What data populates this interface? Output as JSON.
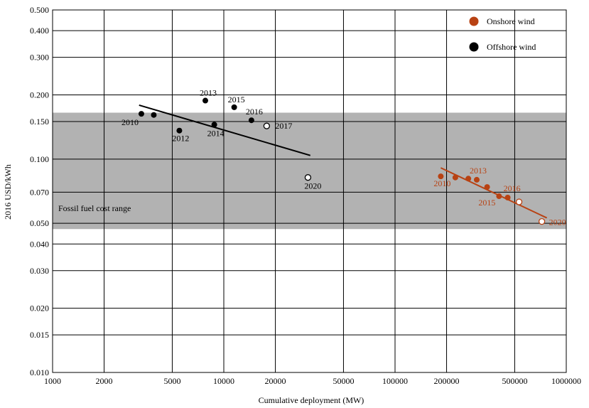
{
  "chart_data": {
    "type": "scatter",
    "title": "",
    "xlabel": "Cumulative deployment (MW)",
    "ylabel": "2016 USD/kWh",
    "x_scale": "log",
    "y_scale": "log",
    "xlim": [
      1000,
      1000000
    ],
    "ylim": [
      0.01,
      0.5
    ],
    "grid": true,
    "x_ticks": [
      1000,
      2000,
      5000,
      10000,
      20000,
      50000,
      100000,
      200000,
      500000,
      1000000
    ],
    "x_tick_labels": [
      "1000",
      "2000",
      "5000",
      "10000",
      "20000",
      "50000",
      "100000",
      "200000",
      "500000",
      "1000000"
    ],
    "y_ticks": [
      0.01,
      0.015,
      0.02,
      0.03,
      0.04,
      0.05,
      0.07,
      0.1,
      0.15,
      0.2,
      0.3,
      0.4,
      0.5
    ],
    "y_tick_labels": [
      "0.010",
      "0.015",
      "0.020",
      "0.030",
      "0.040",
      "0.050",
      "0.070",
      "0.100",
      "0.150",
      "0.200",
      "0.300",
      "0.400",
      "0.500"
    ],
    "shaded_band": {
      "label": "Fossil fuel cost range",
      "y_range": [
        0.047,
        0.165
      ],
      "color": "#b2b2b2"
    },
    "legend": {
      "placement": "top-right"
    },
    "series": [
      {
        "name": "Offshore wind",
        "color": "#000000",
        "points": [
          {
            "x": 3300,
            "y": 0.163,
            "label": "2010",
            "projected": false
          },
          {
            "x": 3900,
            "y": 0.161,
            "label": "",
            "projected": false
          },
          {
            "x": 5500,
            "y": 0.136,
            "label": "2012",
            "projected": false
          },
          {
            "x": 7800,
            "y": 0.188,
            "label": "2013",
            "projected": false
          },
          {
            "x": 8800,
            "y": 0.145,
            "label": "2014",
            "projected": false
          },
          {
            "x": 11500,
            "y": 0.175,
            "label": "2015",
            "projected": false
          },
          {
            "x": 14500,
            "y": 0.152,
            "label": "2016",
            "projected": false
          },
          {
            "x": 17800,
            "y": 0.143,
            "label": "2017",
            "projected": true
          },
          {
            "x": 31000,
            "y": 0.082,
            "label": "2020",
            "projected": true
          }
        ],
        "trendline": {
          "x": [
            3200,
            32000
          ],
          "y": [
            0.179,
            0.104
          ]
        }
      },
      {
        "name": "Onshore wind",
        "color": "#b84213",
        "points": [
          {
            "x": 185000,
            "y": 0.083,
            "label": "2010",
            "projected": false
          },
          {
            "x": 225000,
            "y": 0.082,
            "label": "",
            "projected": false
          },
          {
            "x": 268000,
            "y": 0.081,
            "label": "",
            "projected": false
          },
          {
            "x": 300000,
            "y": 0.08,
            "label": "2013",
            "projected": false
          },
          {
            "x": 345000,
            "y": 0.074,
            "label": "",
            "projected": false
          },
          {
            "x": 405000,
            "y": 0.067,
            "label": "2015",
            "projected": false
          },
          {
            "x": 455000,
            "y": 0.066,
            "label": "2016",
            "projected": false
          },
          {
            "x": 530000,
            "y": 0.063,
            "label": "",
            "projected": true
          },
          {
            "x": 720000,
            "y": 0.051,
            "label": "2020",
            "projected": true
          }
        ],
        "trendline": {
          "x": [
            185000,
            770000
          ],
          "y": [
            0.091,
            0.053
          ]
        }
      }
    ]
  }
}
